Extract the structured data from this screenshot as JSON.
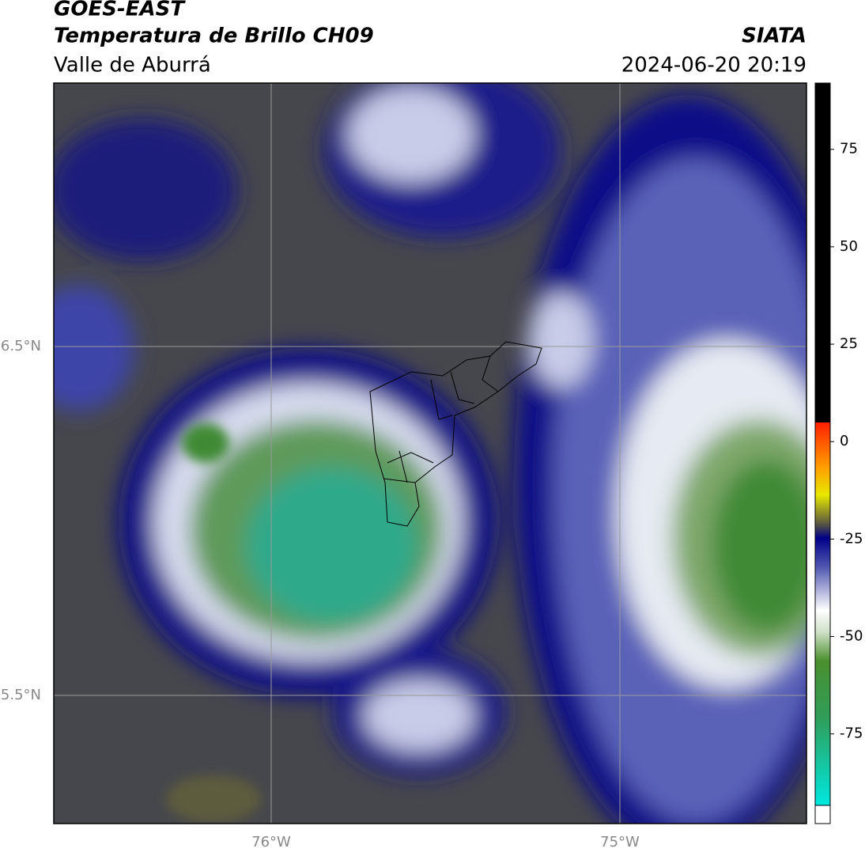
{
  "header": {
    "satellite": "GOES-EAST",
    "product": "Temperatura de Brillo CH09",
    "region": "Valle de Aburrá",
    "source": "SIATA",
    "timestamp": "2024-06-20 20:19"
  },
  "map": {
    "lat_labels": [
      "6.5°N",
      "5.5°N"
    ],
    "lon_labels": [
      "76°W",
      "75°W"
    ]
  },
  "colorbar": {
    "range": [
      -98,
      92
    ],
    "ticks": [
      75,
      50,
      25,
      0,
      -25,
      -50,
      -75
    ]
  }
}
